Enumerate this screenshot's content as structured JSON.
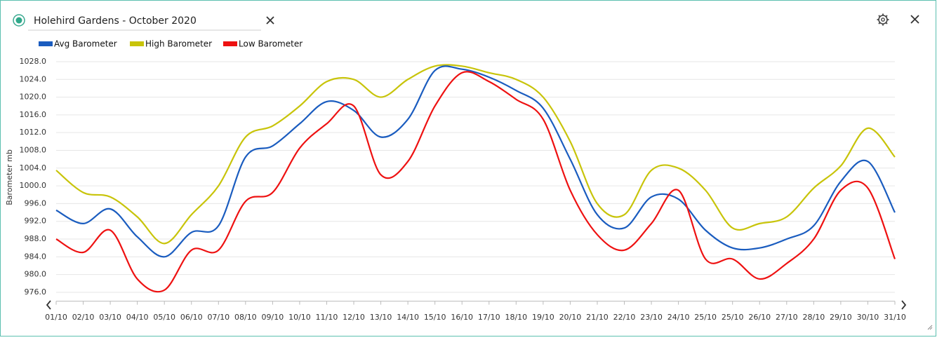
{
  "header": {
    "title": "Holehird Gardens - October 2020"
  },
  "chart_data": {
    "type": "line",
    "y_label": "Barometer mb",
    "categories": [
      "01/10",
      "02/10",
      "03/10",
      "04/10",
      "05/10",
      "06/10",
      "07/10",
      "08/10",
      "09/10",
      "10/10",
      "11/10",
      "12/10",
      "13/10",
      "14/10",
      "15/10",
      "16/10",
      "17/10",
      "18/10",
      "19/10",
      "20/10",
      "21/10",
      "22/10",
      "23/10",
      "24/10",
      "25/10",
      "25/10",
      "26/10",
      "27/10",
      "28/10",
      "29/10",
      "30/10",
      "31/10"
    ],
    "series": [
      {
        "name": "Avg Barometer",
        "color": "#1a5cbf",
        "values": [
          994.5,
          991.5,
          994.8,
          988.5,
          984,
          989.5,
          991,
          1006.5,
          1009,
          1014,
          1019,
          1017,
          1011,
          1015,
          1026,
          1026.3,
          1024.5,
          1021.5,
          1017.5,
          1006,
          993.5,
          990.5,
          997.5,
          997,
          990,
          986,
          986,
          988,
          991,
          1001,
          1005.5,
          994
        ]
      },
      {
        "name": "High Barometer",
        "color": "#c8c40a",
        "values": [
          1003.5,
          998.5,
          997.5,
          993,
          987,
          993.5,
          1000,
          1011,
          1013.5,
          1018,
          1023.5,
          1024,
          1020,
          1024,
          1027,
          1027,
          1025.5,
          1024,
          1020,
          1010,
          996,
          993.5,
          1003.5,
          1004,
          999,
          990.5,
          991.5,
          993,
          999.5,
          1004.5,
          1013,
          1006.5
        ]
      },
      {
        "name": "Low Barometer",
        "color": "#ee1111",
        "values": [
          988,
          985,
          990,
          979,
          976.5,
          985.5,
          985.5,
          996.5,
          998.5,
          1008.5,
          1014,
          1018,
          1002.5,
          1005.5,
          1018,
          1025.5,
          1023.5,
          1019.5,
          1015,
          999,
          989,
          985.5,
          991.5,
          999,
          983.5,
          983.5,
          979,
          982.5,
          988,
          999,
          999.5,
          983.5
        ]
      }
    ],
    "ylim": [
      974,
      1030
    ],
    "yticks": [
      {
        "value": 976,
        "label": "976.0"
      },
      {
        "value": 980,
        "label": "980.0"
      },
      {
        "value": 984,
        "label": "984.0"
      },
      {
        "value": 988,
        "label": "988.0"
      },
      {
        "value": 992,
        "label": "992.0"
      },
      {
        "value": 996,
        "label": "996.0"
      },
      {
        "value": 1000,
        "label": "1000.0"
      },
      {
        "value": 1004,
        "label": "1004.0"
      },
      {
        "value": 1008,
        "label": "1008.0"
      },
      {
        "value": 1012,
        "label": "1012.0"
      },
      {
        "value": 1016,
        "label": "1016.0"
      },
      {
        "value": 1020,
        "label": "1020.0"
      },
      {
        "value": 1024,
        "label": "1024.0"
      },
      {
        "value": 1028,
        "label": "1028.0"
      }
    ],
    "grid": true
  }
}
